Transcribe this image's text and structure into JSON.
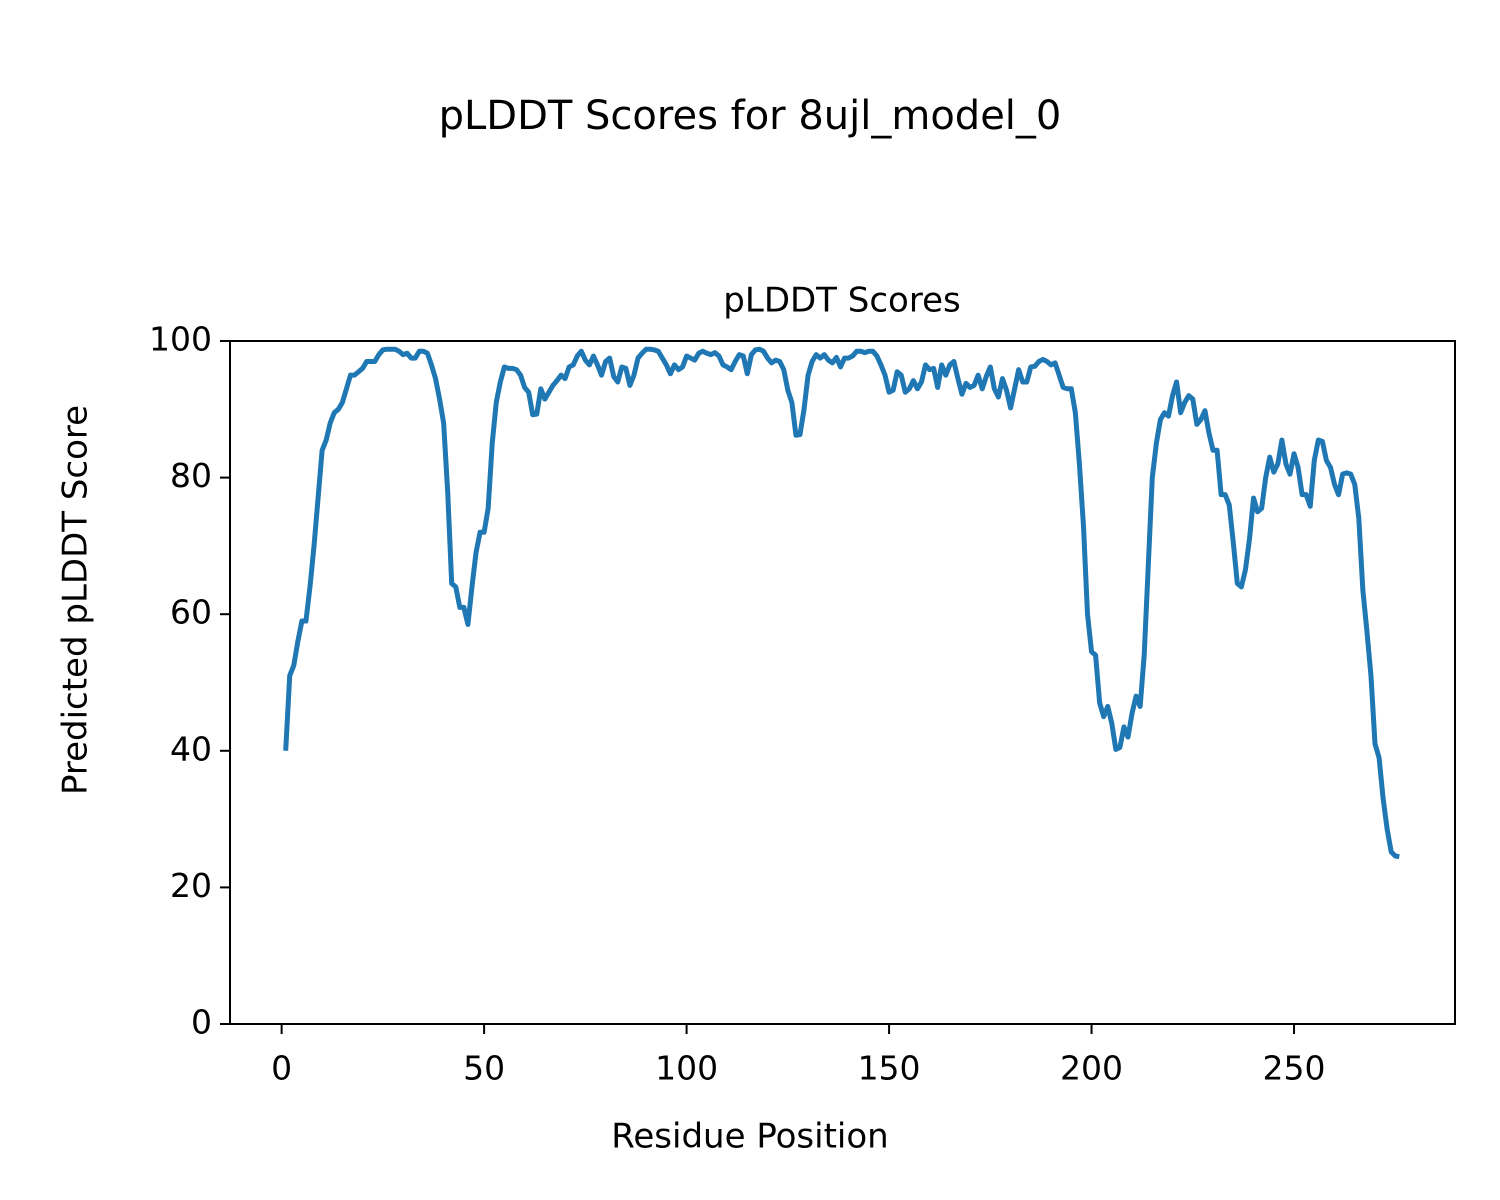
{
  "chart_data": {
    "type": "line",
    "suptitle": "pLDDT Scores for 8ujl_model_0",
    "title": "pLDDT Scores",
    "x_label": "Residue Position",
    "y_label": "Predicted pLDDT Score",
    "xlim": [
      -12.75,
      289.75
    ],
    "ylim": [
      0,
      100
    ],
    "xticks": [
      0,
      50,
      100,
      150,
      200,
      250
    ],
    "yticks": [
      0,
      20,
      40,
      60,
      80,
      100
    ],
    "grid": false,
    "x": [
      1,
      2,
      3,
      4,
      5,
      6,
      7,
      8,
      9,
      10,
      11,
      12,
      13,
      14,
      15,
      16,
      17,
      18,
      19,
      20,
      21,
      22,
      23,
      24,
      25,
      26,
      27,
      28,
      29,
      30,
      31,
      32,
      33,
      34,
      35,
      36,
      37,
      38,
      39,
      40,
      41,
      42,
      43,
      44,
      45,
      46,
      47,
      48,
      49,
      50,
      51,
      52,
      53,
      54,
      55,
      56,
      57,
      58,
      59,
      60,
      61,
      62,
      63,
      64,
      65,
      66,
      67,
      68,
      69,
      70,
      71,
      72,
      73,
      74,
      75,
      76,
      77,
      78,
      79,
      80,
      81,
      82,
      83,
      84,
      85,
      86,
      87,
      88,
      89,
      90,
      91,
      92,
      93,
      94,
      95,
      96,
      97,
      98,
      99,
      100,
      101,
      102,
      103,
      104,
      105,
      106,
      107,
      108,
      109,
      110,
      111,
      112,
      113,
      114,
      115,
      116,
      117,
      118,
      119,
      120,
      121,
      122,
      123,
      124,
      125,
      126,
      127,
      128,
      129,
      130,
      131,
      132,
      133,
      134,
      135,
      136,
      137,
      138,
      139,
      140,
      141,
      142,
      143,
      144,
      145,
      146,
      147,
      148,
      149,
      150,
      151,
      152,
      153,
      154,
      155,
      156,
      157,
      158,
      159,
      160,
      161,
      162,
      163,
      164,
      165,
      166,
      167,
      168,
      169,
      170,
      171,
      172,
      173,
      174,
      175,
      176,
      177,
      178,
      179,
      180,
      181,
      182,
      183,
      184,
      185,
      186,
      187,
      188,
      189,
      190,
      191,
      192,
      193,
      194,
      195,
      196,
      197,
      198,
      199,
      200,
      201,
      202,
      203,
      204,
      205,
      206,
      207,
      208,
      209,
      210,
      211,
      212,
      213,
      214,
      215,
      216,
      217,
      218,
      219,
      220,
      221,
      222,
      223,
      224,
      225,
      226,
      227,
      228,
      229,
      230,
      231,
      232,
      233,
      234,
      235,
      236,
      237,
      238,
      239,
      240,
      241,
      242,
      243,
      244,
      245,
      246,
      247,
      248,
      249,
      250,
      251,
      252,
      253,
      254,
      255,
      256,
      257,
      258,
      259,
      260,
      261,
      262,
      263,
      264,
      265,
      266,
      267,
      268,
      269,
      270,
      271,
      272,
      273,
      274,
      275,
      276
    ],
    "series": [
      {
        "color": "#1f77b4",
        "values": [
          40,
          51,
          52.5,
          56,
          59,
          59,
          64,
          70,
          77,
          84,
          85.5,
          88,
          89.5,
          90,
          91,
          93,
          95,
          95,
          95.5,
          96,
          97,
          97,
          97,
          98,
          98.7,
          98.8,
          98.8,
          98.8,
          98.5,
          98,
          98.2,
          97.5,
          97.5,
          98.5,
          98.5,
          98.2,
          96.5,
          94.5,
          91.5,
          88,
          78,
          64.5,
          64,
          61,
          61,
          58.5,
          64,
          69,
          72,
          72,
          75.5,
          85,
          91,
          94,
          96.2,
          96,
          96,
          95.8,
          95,
          93.2,
          92.5,
          89.2,
          89.3,
          93,
          91.5,
          92.5,
          93.5,
          94.2,
          95,
          94.5,
          96.2,
          96.5,
          97.8,
          98.5,
          97.2,
          96.5,
          97.8,
          96.5,
          95,
          97,
          97.5,
          94.8,
          94,
          96.2,
          96,
          93.5,
          95,
          97.5,
          98.2,
          98.8,
          98.8,
          98.7,
          98.5,
          97.5,
          96.5,
          95.2,
          96.5,
          95.8,
          96.2,
          97.8,
          97.5,
          97.2,
          98.2,
          98.5,
          98.2,
          98,
          98.3,
          97.8,
          96.5,
          96.2,
          95.8,
          97,
          98,
          97.8,
          95.2,
          98,
          98.7,
          98.8,
          98.5,
          97.5,
          96.8,
          97.2,
          97,
          95.8,
          92.8,
          91,
          86.2,
          86.3,
          90,
          95,
          97,
          98,
          97.5,
          98,
          97.2,
          96.8,
          97.6,
          96.2,
          97.5,
          97.5,
          97.8,
          98.5,
          98.5,
          98.3,
          98.5,
          98.5,
          97.8,
          96.5,
          95,
          92.5,
          92.8,
          95.5,
          95,
          92.5,
          93,
          94.2,
          93,
          94,
          96.5,
          95.8,
          96,
          93.2,
          96.5,
          95,
          96.5,
          97,
          94.5,
          92.2,
          93.8,
          93.2,
          93.5,
          95,
          93,
          94.8,
          96.2,
          93,
          91.8,
          94.5,
          92.8,
          90.2,
          93,
          95.8,
          94,
          94,
          96.2,
          96.3,
          97,
          97.3,
          97,
          96.5,
          96.8,
          95,
          93.2,
          93,
          93,
          89.5,
          82,
          73,
          60,
          54.5,
          54,
          47,
          45,
          46.5,
          44,
          40.2,
          40.5,
          43.5,
          42,
          45.5,
          48,
          46.5,
          54,
          67,
          80,
          85,
          88.5,
          89.5,
          89,
          92,
          94,
          89.5,
          91,
          92,
          91.5,
          87.8,
          88.5,
          89.8,
          86.5,
          84,
          84,
          77.5,
          77.5,
          76,
          70.5,
          64.5,
          64,
          66.5,
          71,
          77,
          75,
          75.5,
          80,
          83,
          80.8,
          82,
          85.5,
          82,
          80.5,
          83.5,
          81.5,
          77.5,
          77.5,
          75.8,
          82.5,
          85.5,
          85.3,
          82.5,
          81.5,
          79,
          77.5,
          80.5,
          80.7,
          80.5,
          79,
          74,
          63.5,
          57.5,
          51,
          41,
          39,
          33,
          28.5,
          25.2,
          24.6,
          24.5
        ]
      }
    ]
  }
}
